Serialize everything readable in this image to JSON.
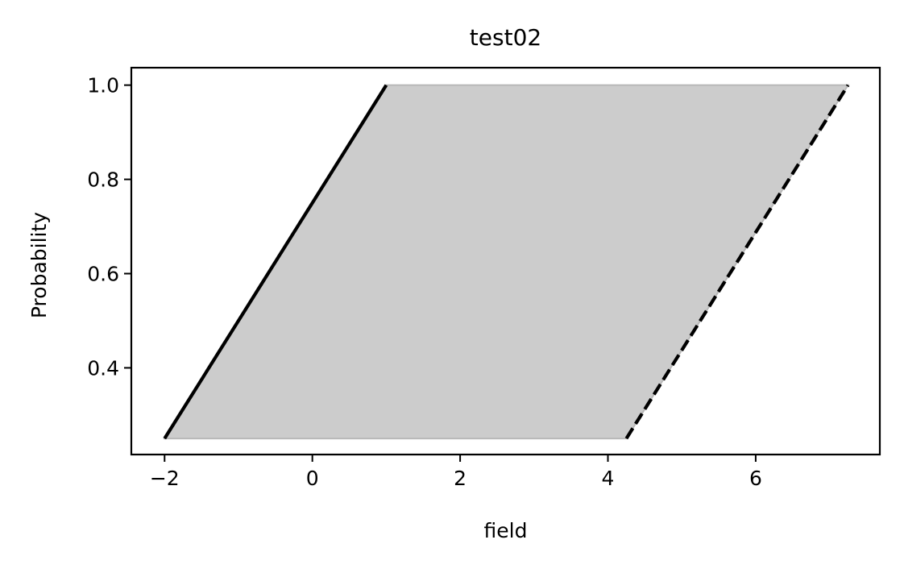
{
  "chart_data": {
    "type": "area",
    "title": "test02",
    "xlabel": "field",
    "ylabel": "Probability",
    "xlim": [
      -2.45,
      7.68
    ],
    "ylim": [
      0.216,
      1.037
    ],
    "xticks": [
      -2,
      0,
      2,
      4,
      6
    ],
    "xtick_labels": [
      "−2",
      "0",
      "2",
      "4",
      "6"
    ],
    "yticks": [
      0.4,
      0.6,
      0.8,
      1.0
    ],
    "ytick_labels": [
      "0.4",
      "0.6",
      "0.8",
      "1.0"
    ],
    "grid": false,
    "series": [
      {
        "style": "solid",
        "color": "#000000",
        "x": [
          -2.0,
          1.0
        ],
        "y": [
          0.25,
          1.0
        ]
      },
      {
        "style": "dashed",
        "color": "#000000",
        "x": [
          4.25,
          7.25
        ],
        "y": [
          0.25,
          1.0
        ]
      }
    ],
    "fill": {
      "color": "#cccccc",
      "x": [
        -2.0,
        1.0,
        7.25,
        4.25
      ],
      "y": [
        0.25,
        1.0,
        1.0,
        0.25
      ]
    }
  }
}
